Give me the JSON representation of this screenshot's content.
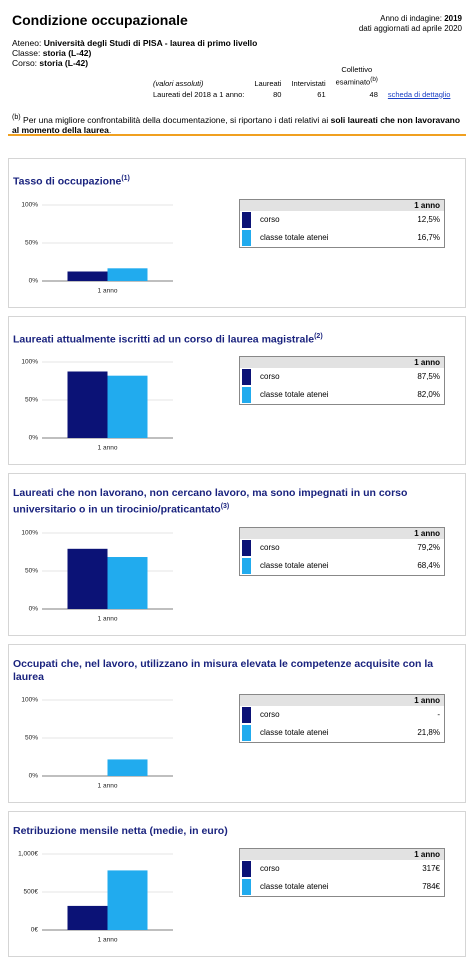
{
  "header": {
    "title": "Condizione occupazionale",
    "survey_label": "Anno di indagine:",
    "survey_year": "2019",
    "updated": "dati aggiornati ad aprile 2020",
    "info": [
      {
        "label": "Ateneo:",
        "value": "Università degli Studi di PISA - laurea di primo livello"
      },
      {
        "label": "Classe:",
        "value": "storia (L-42)"
      },
      {
        "label": "Corso:",
        "value": "storia (L-42)"
      }
    ]
  },
  "sample": {
    "columns": [
      "(valori assoluti)",
      "Laureati",
      "Intervistati",
      "Collettivo esaminato"
    ],
    "column_note": "(b)",
    "row": {
      "label": "Laureati del 2018 a 1 anno:",
      "values": [
        80,
        61,
        48
      ],
      "link": "scheda di dettaglio"
    }
  },
  "note": {
    "marker": "(b)",
    "text": "Per una migliore confrontabilità della documentazione, si riportano i dati relativi ai",
    "bold": "soli laureati che non lavoravano al momento della laurea",
    "end": "."
  },
  "chart_data": [
    {
      "type": "bar",
      "title": "Tasso di occupazione",
      "title_note": "(1)",
      "categories": [
        "1 anno"
      ],
      "ylim": [
        0,
        100
      ],
      "yticks": [
        {
          "value": 0,
          "label": "0%"
        },
        {
          "value": 50,
          "label": "50%"
        },
        {
          "value": 100,
          "label": "100%"
        }
      ],
      "grid": true,
      "series": [
        {
          "name": "corso",
          "color": "#0b1276",
          "values": [
            12.5
          ],
          "value_labels": [
            "12,5%"
          ]
        },
        {
          "name": "classe totale atenei",
          "color": "#21abee",
          "values": [
            16.7
          ],
          "value_labels": [
            "16,7%"
          ]
        }
      ]
    },
    {
      "type": "bar",
      "title": "Laureati attualmente iscritti ad un corso di laurea magistrale",
      "title_note": "(2)",
      "categories": [
        "1 anno"
      ],
      "ylim": [
        0,
        100
      ],
      "yticks": [
        {
          "value": 0,
          "label": "0%"
        },
        {
          "value": 50,
          "label": "50%"
        },
        {
          "value": 100,
          "label": "100%"
        }
      ],
      "grid": true,
      "series": [
        {
          "name": "corso",
          "color": "#0b1276",
          "values": [
            87.5
          ],
          "value_labels": [
            "87,5%"
          ]
        },
        {
          "name": "classe totale atenei",
          "color": "#21abee",
          "values": [
            82.0
          ],
          "value_labels": [
            "82,0%"
          ]
        }
      ]
    },
    {
      "type": "bar",
      "title": "Laureati che non lavorano, non cercano lavoro, ma sono impegnati in un corso universitario o in un tirocinio/praticantato",
      "title_note": "(3)",
      "categories": [
        "1 anno"
      ],
      "ylim": [
        0,
        100
      ],
      "yticks": [
        {
          "value": 0,
          "label": "0%"
        },
        {
          "value": 50,
          "label": "50%"
        },
        {
          "value": 100,
          "label": "100%"
        }
      ],
      "grid": true,
      "series": [
        {
          "name": "corso",
          "color": "#0b1276",
          "values": [
            79.2
          ],
          "value_labels": [
            "79,2%"
          ]
        },
        {
          "name": "classe totale atenei",
          "color": "#21abee",
          "values": [
            68.4
          ],
          "value_labels": [
            "68,4%"
          ]
        }
      ]
    },
    {
      "type": "bar",
      "title": "Occupati che, nel lavoro, utilizzano in misura elevata le competenze acquisite con la laurea",
      "categories": [
        "1 anno"
      ],
      "ylim": [
        0,
        100
      ],
      "yticks": [
        {
          "value": 0,
          "label": "0%"
        },
        {
          "value": 50,
          "label": "50%"
        },
        {
          "value": 100,
          "label": "100%"
        }
      ],
      "grid": true,
      "series": [
        {
          "name": "corso",
          "color": "#0b1276",
          "values": [
            null
          ],
          "value_labels": [
            "-"
          ]
        },
        {
          "name": "classe totale atenei",
          "color": "#21abee",
          "values": [
            21.8
          ],
          "value_labels": [
            "21,8%"
          ]
        }
      ]
    },
    {
      "type": "bar",
      "title": "Retribuzione mensile netta (medie, in euro)",
      "categories": [
        "1 anno"
      ],
      "ylim": [
        0,
        1000
      ],
      "yticks": [
        {
          "value": 0,
          "label": "0€"
        },
        {
          "value": 500,
          "label": "500€"
        },
        {
          "value": 1000,
          "label": "1,000€"
        }
      ],
      "grid": true,
      "series": [
        {
          "name": "corso",
          "color": "#0b1276",
          "values": [
            317
          ],
          "value_labels": [
            "317€"
          ]
        },
        {
          "name": "classe totale atenei",
          "color": "#21abee",
          "values": [
            784
          ],
          "value_labels": [
            "784€"
          ]
        }
      ]
    }
  ]
}
